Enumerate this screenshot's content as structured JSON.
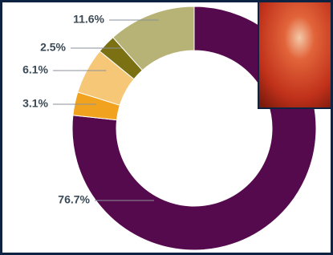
{
  "chart_data": {
    "type": "donut",
    "values": [
      76.7,
      3.1,
      6.1,
      2.5,
      11.6
    ],
    "value_labels": [
      "76.7%",
      "3.1%",
      "6.1%",
      "2.5%",
      "11.6%"
    ],
    "colors": [
      "#560a4e",
      "#f1a31f",
      "#f7c778",
      "#7b7012",
      "#b7b275"
    ]
  }
}
